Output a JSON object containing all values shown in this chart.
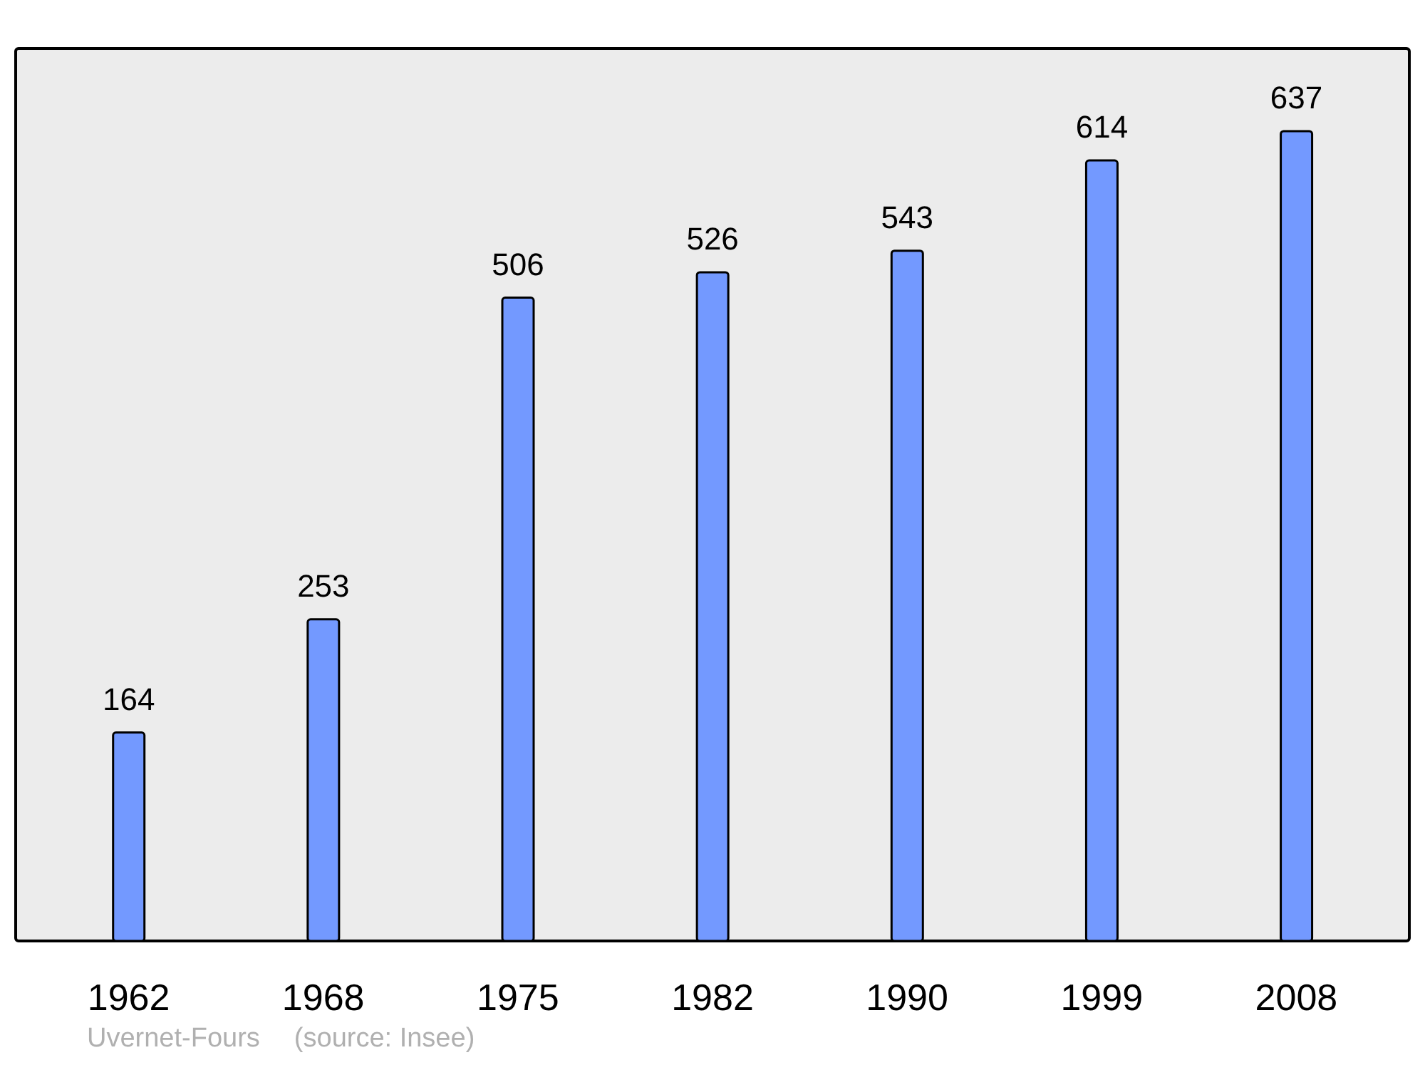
{
  "chart_data": {
    "type": "bar",
    "categories": [
      "1962",
      "1968",
      "1975",
      "1982",
      "1990",
      "1999",
      "2008"
    ],
    "values": [
      164,
      253,
      506,
      526,
      543,
      614,
      637
    ],
    "color": "#7399ff",
    "data_labels": true,
    "annotations": [
      "Uvernet-Fours",
      "(source: Insee)"
    ]
  }
}
